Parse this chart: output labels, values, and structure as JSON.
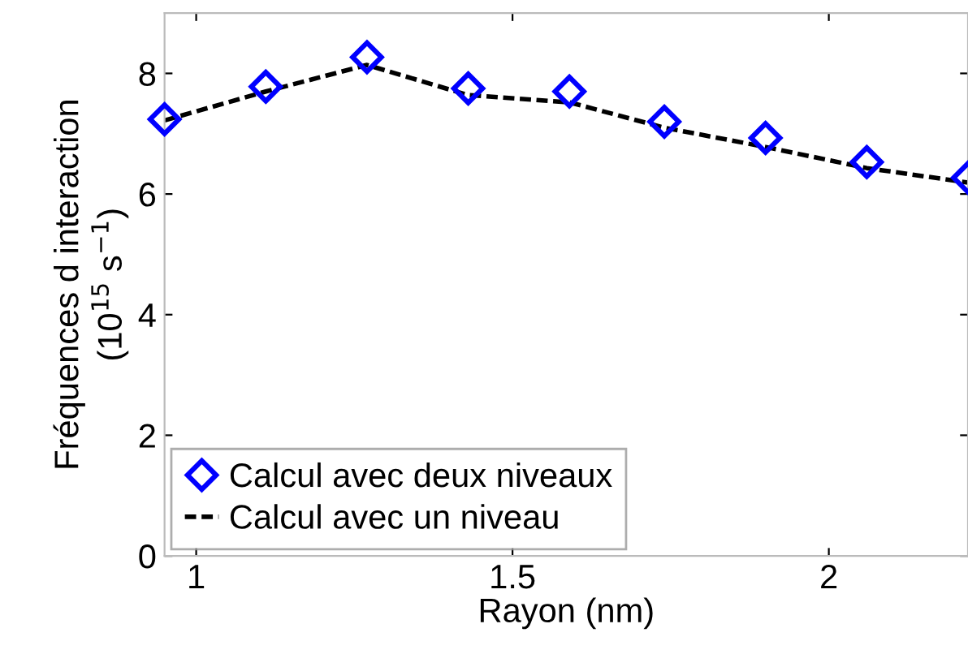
{
  "chart_data": {
    "type": "line",
    "xlabel": "Rayon (nm)",
    "ylabel": "Fréquences d interaction\n(10$^{15}$ s$^{−1}$)",
    "x": [
      0.95,
      1.11,
      1.27,
      1.43,
      1.59,
      1.74,
      1.9,
      2.06,
      2.22
    ],
    "series": [
      {
        "name": "Calcul avec deux niveaux",
        "color": "#0000ff",
        "type": "scatter",
        "marker": "diamond",
        "values": [
          7.24,
          7.78,
          8.27,
          7.75,
          7.7,
          7.2,
          6.93,
          6.53,
          6.27
        ]
      },
      {
        "name": "Calcul avec un niveau",
        "color": "#000000",
        "line_style": "dashed",
        "marker": "none",
        "values": [
          7.22,
          7.7,
          8.14,
          7.64,
          7.52,
          7.1,
          6.78,
          6.43,
          6.19
        ]
      }
    ],
    "xlim": [
      0.95,
      2.22
    ],
    "ylim": [
      0,
      9
    ],
    "xticks": [
      1,
      1.5,
      2
    ],
    "yticks": [
      0,
      2,
      4,
      6,
      8
    ],
    "grid": false,
    "legend": "bottom left"
  }
}
